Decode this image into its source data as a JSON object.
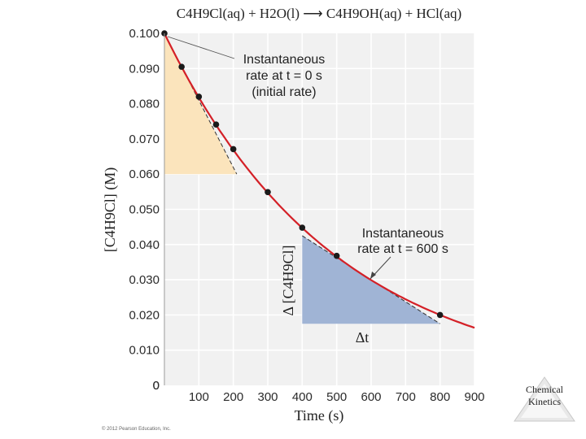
{
  "chart_data": {
    "type": "line",
    "title": "C4H9Cl(aq) + H2O(l) ⟶ C4H9OH(aq) + HCl(aq)",
    "xlabel": "Time (s)",
    "ylabel": "[C4H9Cl] (M)",
    "xlim": [
      0,
      900
    ],
    "ylim": [
      0,
      0.1
    ],
    "x_ticks": [
      "100",
      "200",
      "300",
      "400",
      "500",
      "600",
      "700",
      "800",
      "900"
    ],
    "y_ticks": [
      "0",
      "0.010",
      "0.020",
      "0.030",
      "0.040",
      "0.050",
      "0.060",
      "0.070",
      "0.080",
      "0.090",
      "0.100"
    ],
    "grid": true,
    "series": [
      {
        "name": "[C4H9Cl]",
        "color": "#d42027",
        "x": [
          0,
          50,
          100,
          150,
          200,
          300,
          400,
          500,
          800
        ],
        "values": [
          0.1,
          0.0905,
          0.082,
          0.0741,
          0.0671,
          0.0549,
          0.0448,
          0.0368,
          0.02
        ]
      }
    ],
    "tangents": [
      {
        "name": "initial-rate-tangent",
        "points": [
          [
            0,
            0.1
          ],
          [
            210,
            0.06
          ]
        ]
      },
      {
        "name": "t600-tangent",
        "points": [
          [
            400,
            0.0425
          ],
          [
            800,
            0.0175
          ]
        ]
      }
    ],
    "triangles": [
      {
        "name": "initial-rate-triangle",
        "points": [
          [
            0,
            0.1
          ],
          [
            0,
            0.06
          ],
          [
            210,
            0.06
          ]
        ],
        "color": "#fbe3b8"
      },
      {
        "name": "t600-triangle",
        "points": [
          [
            400,
            0.0425
          ],
          [
            400,
            0.0175
          ],
          [
            800,
            0.0175
          ]
        ],
        "color": "#9bb0d3"
      }
    ],
    "annotations": [
      {
        "name": "annotation-initial-rate",
        "lines": [
          "Instantaneous",
          "rate at t = 0 s",
          "(initial rate)"
        ]
      },
      {
        "name": "annotation-t600",
        "lines": [
          "Instantaneous",
          "rate at t = 600 s"
        ]
      }
    ],
    "delta_y_label": "Δ [C4H9Cl]",
    "delta_x_label": "Δt"
  },
  "copyright": "© 2012 Pearson Education, Inc.",
  "badge": {
    "line1": "Chemical",
    "line2": "Kinetics"
  }
}
